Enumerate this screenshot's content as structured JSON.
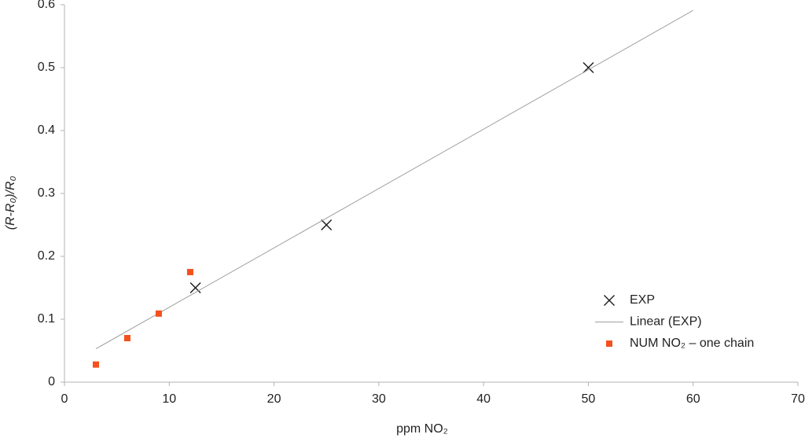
{
  "chart_data": {
    "type": "scatter",
    "xlabel": "ppm NO₂",
    "ylabel": "(R-R₀)/R₀",
    "xlim": [
      0,
      70
    ],
    "ylim": [
      0,
      0.6
    ],
    "xticks": [
      0,
      10,
      20,
      30,
      40,
      50,
      60,
      70
    ],
    "yticks": [
      0,
      0.1,
      0.2,
      0.3,
      0.4,
      0.5,
      0.6
    ],
    "legend": "lower right",
    "series": [
      {
        "name": "EXP",
        "kind": "scatter",
        "marker": "x",
        "color": "#1a1a1a",
        "x": [
          12.5,
          25,
          50
        ],
        "values": [
          0.15,
          0.25,
          0.5
        ]
      },
      {
        "name": "Linear (EXP)",
        "kind": "line",
        "color": "#a0a0a0",
        "x": [
          3,
          60
        ],
        "values": [
          0.053,
          0.591
        ]
      },
      {
        "name": "NUM NO₂ – one chain",
        "kind": "scatter",
        "marker": "square",
        "color": "#f4511e",
        "x": [
          3,
          6,
          9,
          12
        ],
        "values": [
          0.028,
          0.07,
          0.109,
          0.175
        ]
      }
    ]
  }
}
